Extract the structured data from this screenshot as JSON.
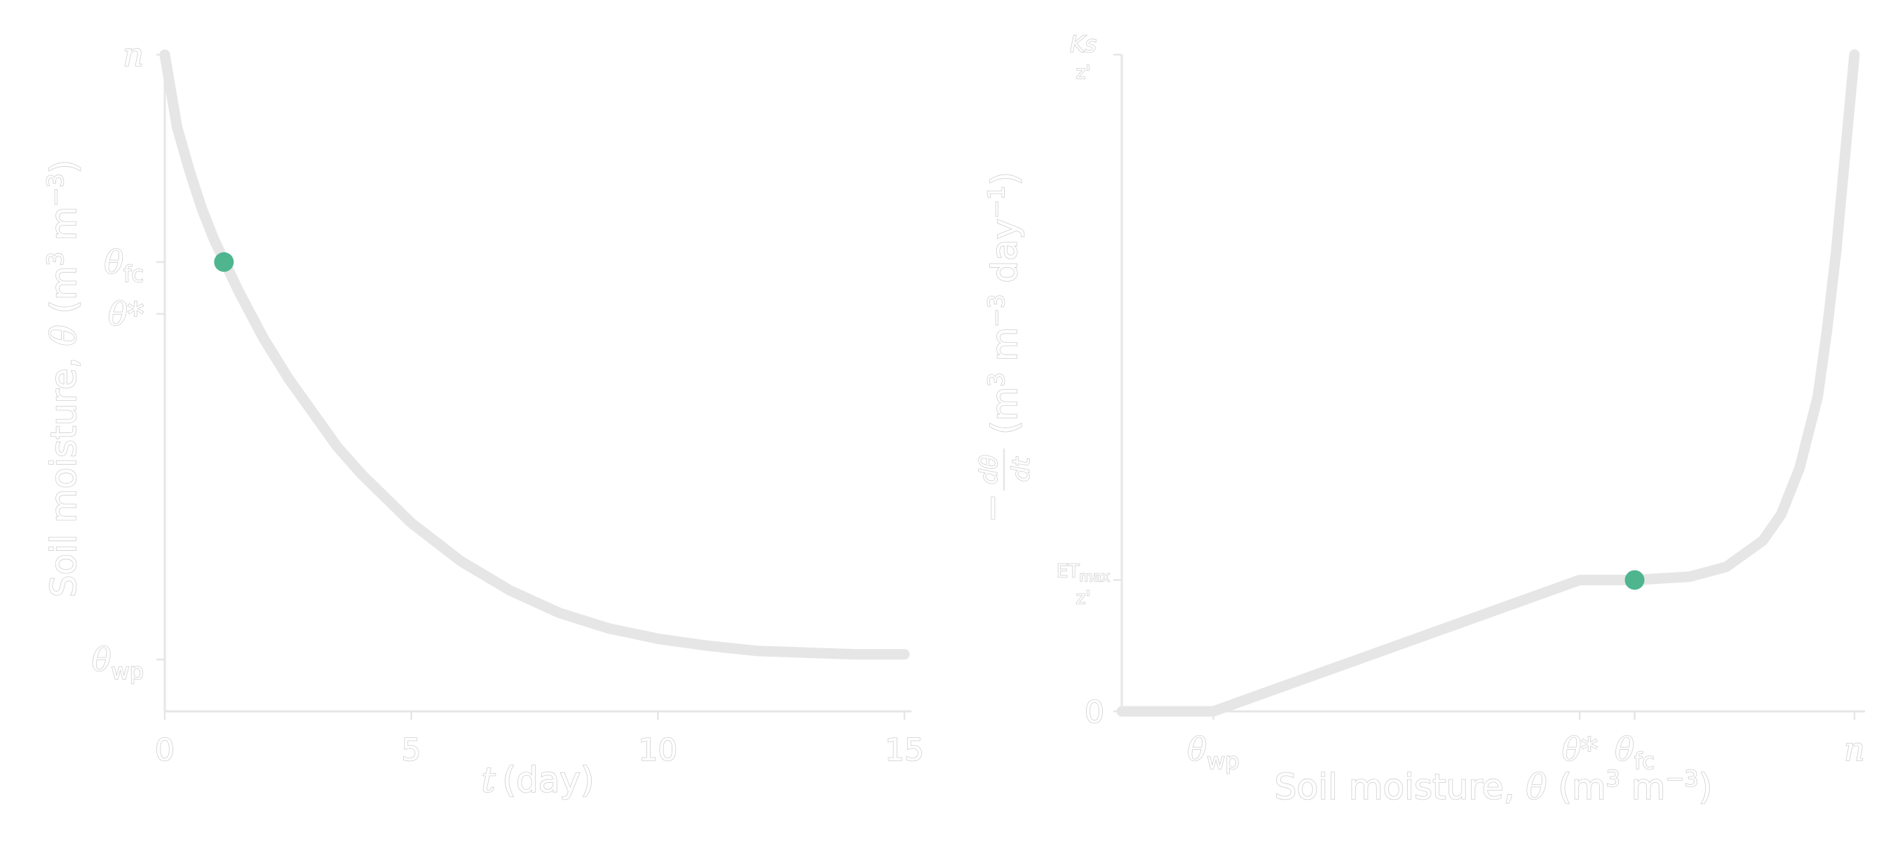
{
  "chart_data": [
    {
      "type": "line",
      "title": "",
      "xlabel": "t (day)",
      "xlabel_var": "t",
      "xlabel_unit": "(day)",
      "ylabel": "Soil moisture, θ (m³ m⁻³)",
      "ylabel_text": "Soil moisture, ",
      "ylabel_var": "θ",
      "ylabel_unit_open": " (m",
      "ylabel_unit_sup1": "3",
      "ylabel_unit_mid": " m",
      "ylabel_unit_sup2": "−3",
      "ylabel_unit_close": ")",
      "xlim": [
        0,
        15
      ],
      "ylim": [
        0.02,
        0.4
      ],
      "x_ticks": [
        {
          "value": 0,
          "label": "0"
        },
        {
          "value": 5,
          "label": "5"
        },
        {
          "value": 10,
          "label": "10"
        },
        {
          "value": 15,
          "label": "15"
        }
      ],
      "y_ticks": [
        {
          "value": 0.4,
          "sym": "n",
          "sub": ""
        },
        {
          "value": 0.28,
          "sym": "θ",
          "sub": "fc"
        },
        {
          "value": 0.25,
          "sym": "θ*",
          "sub": ""
        },
        {
          "value": 0.05,
          "sym": "θ",
          "sub": "wp"
        }
      ],
      "series": [
        {
          "x": [
            0,
            0.25,
            0.5,
            0.75,
            1,
            1.25,
            1.5,
            2,
            2.5,
            3,
            3.5,
            4,
            5,
            6,
            7,
            8,
            9,
            10,
            11,
            12,
            13,
            14,
            15
          ],
          "y": [
            0.4,
            0.358,
            0.333,
            0.311,
            0.293,
            0.278,
            0.263,
            0.236,
            0.213,
            0.193,
            0.173,
            0.157,
            0.129,
            0.107,
            0.09,
            0.077,
            0.068,
            0.062,
            0.058,
            0.055,
            0.054,
            0.053,
            0.053
          ]
        }
      ],
      "marker": {
        "x": 1.2,
        "y": 0.28
      },
      "grid": false,
      "legend": "none"
    },
    {
      "type": "line",
      "title": "",
      "xlabel": "Soil moisture, θ (m³ m⁻³)",
      "xlabel_text": "Soil moisture, ",
      "xlabel_var": "θ",
      "xlabel_unit_open": " (m",
      "xlabel_unit_sup1": "3",
      "xlabel_unit_mid": " m",
      "xlabel_unit_sup2": "−3",
      "xlabel_unit_close": ")",
      "ylabel": "−dθ/dt (m³ m⁻³ day⁻¹)",
      "ylabel_frac_num": "dθ",
      "ylabel_frac_den": "dt",
      "ylabel_minus": "−",
      "ylabel_unit_open": " (m",
      "ylabel_unit_sup1": "3",
      "ylabel_unit_mid": " m",
      "ylabel_unit_sup2": "−3",
      "ylabel_unit_mid2": " day",
      "ylabel_unit_sup3": "−1",
      "ylabel_unit_close": ")",
      "xlim": [
        0.0,
        0.4
      ],
      "ylim": [
        0,
        1
      ],
      "x_ticks": [
        {
          "value": 0.05,
          "sym": "θ",
          "sub": "wp"
        },
        {
          "value": 0.25,
          "sym": "θ*",
          "sub": ""
        },
        {
          "value": 0.28,
          "sym": "θ",
          "sub": "fc"
        },
        {
          "value": 0.4,
          "sym": "n",
          "sub": ""
        }
      ],
      "y_ticks": [
        {
          "value": 0,
          "label": "0",
          "kind": "plain"
        },
        {
          "value": 0.2,
          "label": "ETmax",
          "main": "ET",
          "sub": "max",
          "den": "z'",
          "kind": "frac"
        },
        {
          "value": 1.0,
          "label": "Ks",
          "main": "Ks",
          "sub": "",
          "den": "z'",
          "kind": "frac"
        }
      ],
      "series": [
        {
          "x": [
            0.0,
            0.05,
            0.25,
            0.28,
            0.31,
            0.33,
            0.35,
            0.36,
            0.37,
            0.38,
            0.385,
            0.39,
            0.395,
            0.4
          ],
          "y": [
            0,
            0,
            0.2,
            0.2,
            0.205,
            0.22,
            0.26,
            0.3,
            0.37,
            0.48,
            0.58,
            0.7,
            0.85,
            1.0
          ]
        }
      ],
      "marker": {
        "x": 0.28,
        "y": 0.2
      },
      "grid": false,
      "legend": "none"
    }
  ]
}
